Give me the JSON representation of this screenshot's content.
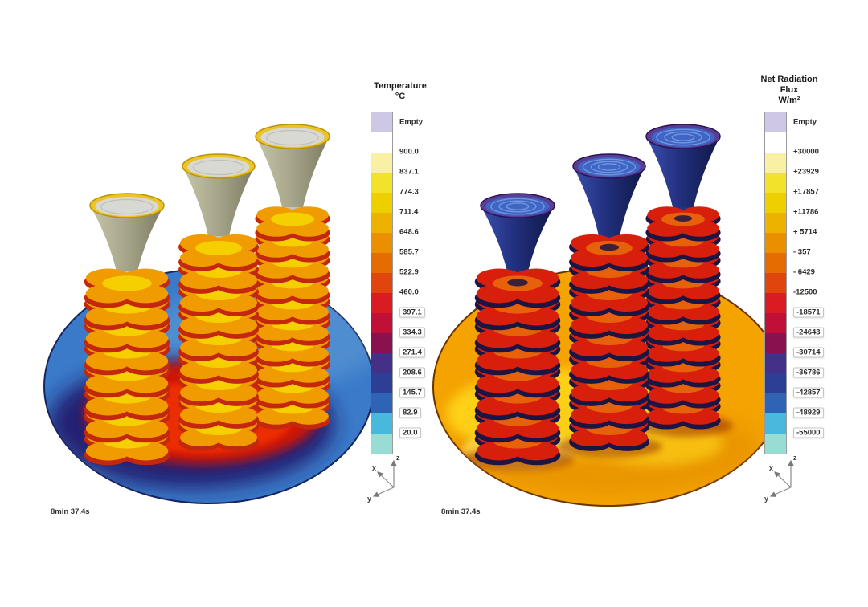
{
  "page": {
    "background": "#ffffff"
  },
  "colorbar_palette": [
    "#cfc7e6",
    "#ffffff",
    "#f8f0a2",
    "#f2e22a",
    "#eecf00",
    "#edb200",
    "#e98f00",
    "#e56c00",
    "#e0450e",
    "#da1b22",
    "#c11038",
    "#8a1150",
    "#453088",
    "#2c3f94",
    "#2f64b4",
    "#48b8dc",
    "#99dcd4"
  ],
  "panels": [
    {
      "id": "temperature",
      "legend": {
        "title_lines": [
          "Temperature",
          "°C"
        ],
        "empty_label": "Empty",
        "tick_labels": [
          "900.0",
          "837.1",
          "774.3",
          "711.4",
          "648.6",
          "585.7",
          "522.9",
          "460.0",
          "397.1",
          "334.3",
          "271.4",
          "208.6",
          "145.7",
          "82.9",
          "20.0"
        ]
      },
      "timestamp": "8min 37.4s",
      "axis_triad": {
        "x_label": "x",
        "y_label": "y",
        "z_label": "z"
      },
      "scene_colors": {
        "base": "#3a7ac8",
        "base_light": "#6aa4dc",
        "halo_dark": "#221a6e",
        "halo_red": "#d81400",
        "halo_core": "#f23000",
        "disc_main": "#f09c00",
        "disc_rim": "#c3280e",
        "disc_highlight": "#f6d500",
        "column": "#c9c5ac",
        "stem": "#c6c3b4",
        "funnel_rim": "#ecc428",
        "funnel_rim_stroke": "#b8940c",
        "funnel_inner": "#d9d9d4",
        "funnel_inner_ring": "#b9b9b0",
        "cone_light": "#c6c5aa",
        "cone_mid": "#a9a88c",
        "cone_dark": "#7d7c64",
        "plate_edge": "#16265e"
      }
    },
    {
      "id": "net-radiation-flux",
      "legend": {
        "title_lines": [
          "Net Radiation",
          "Flux",
          "W/m²"
        ],
        "empty_label": "Empty",
        "tick_labels": [
          "+30000",
          "+23929",
          "+17857",
          "+11786",
          "+ 5714",
          "- 357",
          "- 6429",
          "-12500",
          "-18571",
          "-24643",
          "-30714",
          "-36786",
          "-42857",
          "-48929",
          "-55000"
        ]
      },
      "timestamp": "8min 37.4s",
      "axis_triad": {
        "x_label": "x",
        "y_label": "y",
        "z_label": "z"
      },
      "scene_colors": {
        "base": "#f4a300",
        "base_light": "#ffd91e",
        "base_glow": "#ffe960",
        "base_shade": "#e08900",
        "disc_main": "#d81f0c",
        "disc_rim": "#1c1544",
        "disc_highlight": "#e8680a",
        "column": "#2a3e94",
        "stem": "#22337e",
        "funnel_rim": "#5a3d95",
        "funnel_rim_stroke": "#2a1458",
        "funnel_inner": "#3f66c4",
        "funnel_ring": "#8fb0ee",
        "cone_light": "#3a4fae",
        "cone_mid": "#22307e",
        "cone_dark": "#0f1746",
        "tree_shadow": "#8a1500",
        "plate_edge": "#6b3200"
      }
    }
  ],
  "chart_data": [
    {
      "type": "heatmap",
      "title": "Temperature",
      "units": "°C",
      "legend_position": "right",
      "colorbar_levels": [
        900.0,
        837.1,
        774.3,
        711.4,
        648.6,
        585.7,
        522.9,
        460.0,
        397.1,
        334.3,
        271.4,
        208.6,
        145.7,
        82.9,
        20.0
      ],
      "colorbar_special": "Empty",
      "range": [
        20.0,
        900.0
      ],
      "time": "8min 37.4s",
      "subject": "3D view of three investment-casting part trees with pouring funnels on a circular plate; castings hot (yellow/orange/red) over a cool blue plate with a red heated halo"
    },
    {
      "type": "heatmap",
      "title": "Net Radiation Flux",
      "units": "W/m²",
      "legend_position": "right",
      "colorbar_levels": [
        30000,
        23929,
        17857,
        11786,
        5714,
        -357,
        -6429,
        -12500,
        -18571,
        -24643,
        -30714,
        -36786,
        -42857,
        -48929,
        -55000
      ],
      "colorbar_special": "Empty",
      "range": [
        -55000,
        30000
      ],
      "time": "8min 37.4s",
      "subject": "Same three casting trees colored by net radiation flux; strongly radiating red trees with dark blue funnels over a warm orange/yellow plate"
    }
  ]
}
